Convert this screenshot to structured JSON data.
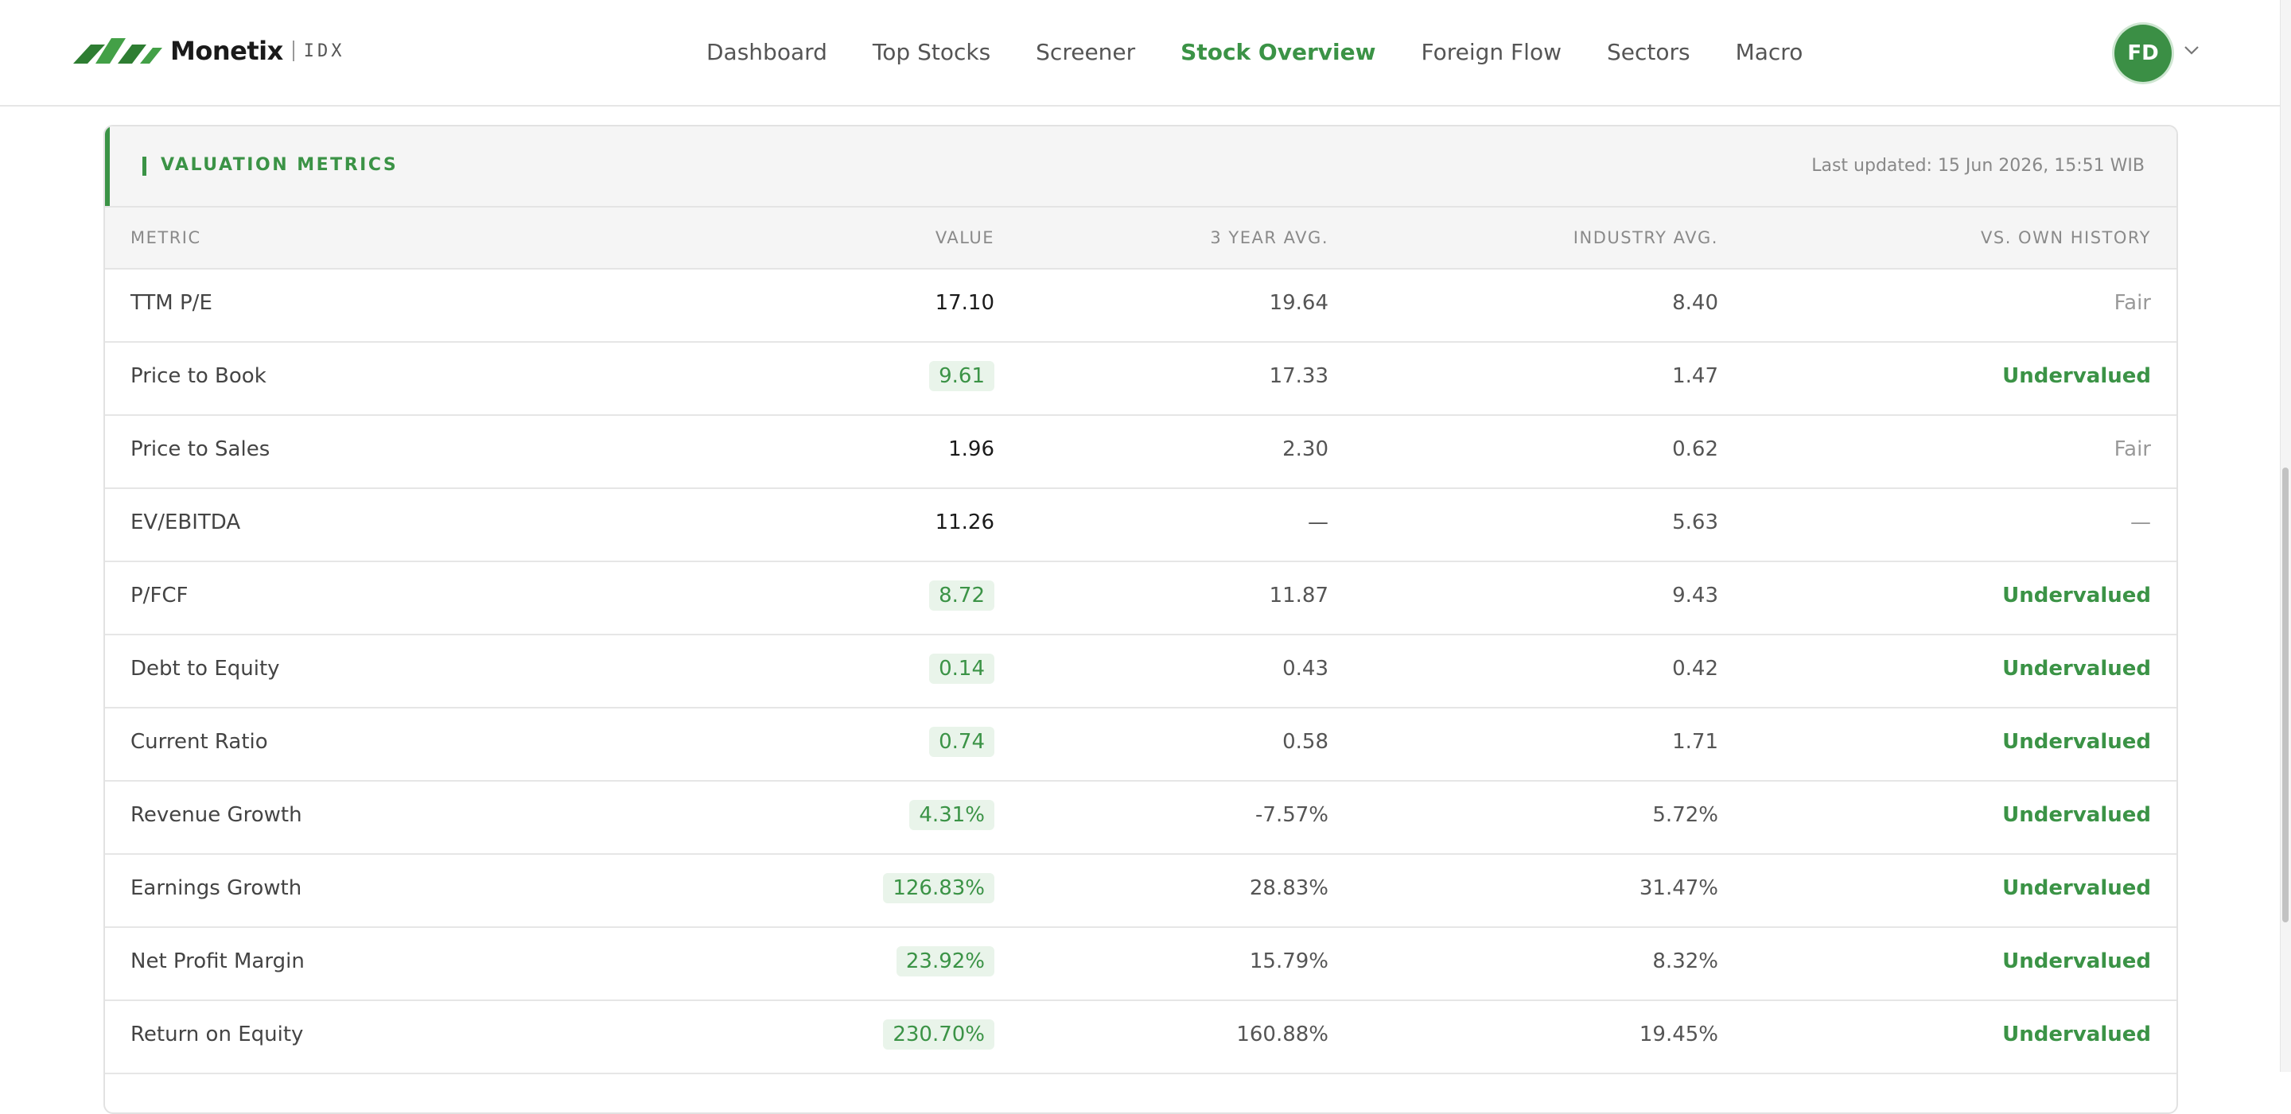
{
  "brand": {
    "name": "Monetix",
    "suffix": "IDX"
  },
  "nav": {
    "items": [
      {
        "label": "Dashboard",
        "active": false
      },
      {
        "label": "Top Stocks",
        "active": false
      },
      {
        "label": "Screener",
        "active": false
      },
      {
        "label": "Stock Overview",
        "active": true
      },
      {
        "label": "Foreign Flow",
        "active": false
      },
      {
        "label": "Sectors",
        "active": false
      },
      {
        "label": "Macro",
        "active": false
      }
    ]
  },
  "user": {
    "initials": "FD",
    "menu_icon": "chevron-down-icon"
  },
  "colors": {
    "accent": "#3b9346",
    "avatar": "#3b8f45",
    "pill_bg": "#e9f4ea"
  },
  "card": {
    "title": "VALUATION METRICS",
    "updated": "Last updated: 15 Jun 2026, 15:51 WIB",
    "columns": [
      "METRIC",
      "VALUE",
      "3 YEAR AVG.",
      "INDUSTRY AVG.",
      "VS. OWN HISTORY"
    ],
    "rows": [
      {
        "metric": "TTM P/E",
        "value": "17.10",
        "highlight": false,
        "avg3y": "19.64",
        "industry": "8.40",
        "history": "Fair"
      },
      {
        "metric": "Price to Book",
        "value": "9.61",
        "highlight": true,
        "avg3y": "17.33",
        "industry": "1.47",
        "history": "Undervalued"
      },
      {
        "metric": "Price to Sales",
        "value": "1.96",
        "highlight": false,
        "avg3y": "2.30",
        "industry": "0.62",
        "history": "Fair"
      },
      {
        "metric": "EV/EBITDA",
        "value": "11.26",
        "highlight": false,
        "avg3y": "—",
        "industry": "5.63",
        "history": "—"
      },
      {
        "metric": "P/FCF",
        "value": "8.72",
        "highlight": true,
        "avg3y": "11.87",
        "industry": "9.43",
        "history": "Undervalued"
      },
      {
        "metric": "Debt to Equity",
        "value": "0.14",
        "highlight": true,
        "avg3y": "0.43",
        "industry": "0.42",
        "history": "Undervalued"
      },
      {
        "metric": "Current Ratio",
        "value": "0.74",
        "highlight": true,
        "avg3y": "0.58",
        "industry": "1.71",
        "history": "Undervalued"
      },
      {
        "metric": "Revenue Growth",
        "value": "4.31%",
        "highlight": true,
        "avg3y": "-7.57%",
        "industry": "5.72%",
        "history": "Undervalued"
      },
      {
        "metric": "Earnings Growth",
        "value": "126.83%",
        "highlight": true,
        "avg3y": "28.83%",
        "industry": "31.47%",
        "history": "Undervalued"
      },
      {
        "metric": "Net Profit Margin",
        "value": "23.92%",
        "highlight": true,
        "avg3y": "15.79%",
        "industry": "8.32%",
        "history": "Undervalued"
      },
      {
        "metric": "Return on Equity",
        "value": "230.70%",
        "highlight": true,
        "avg3y": "160.88%",
        "industry": "19.45%",
        "history": "Undervalued"
      }
    ]
  }
}
